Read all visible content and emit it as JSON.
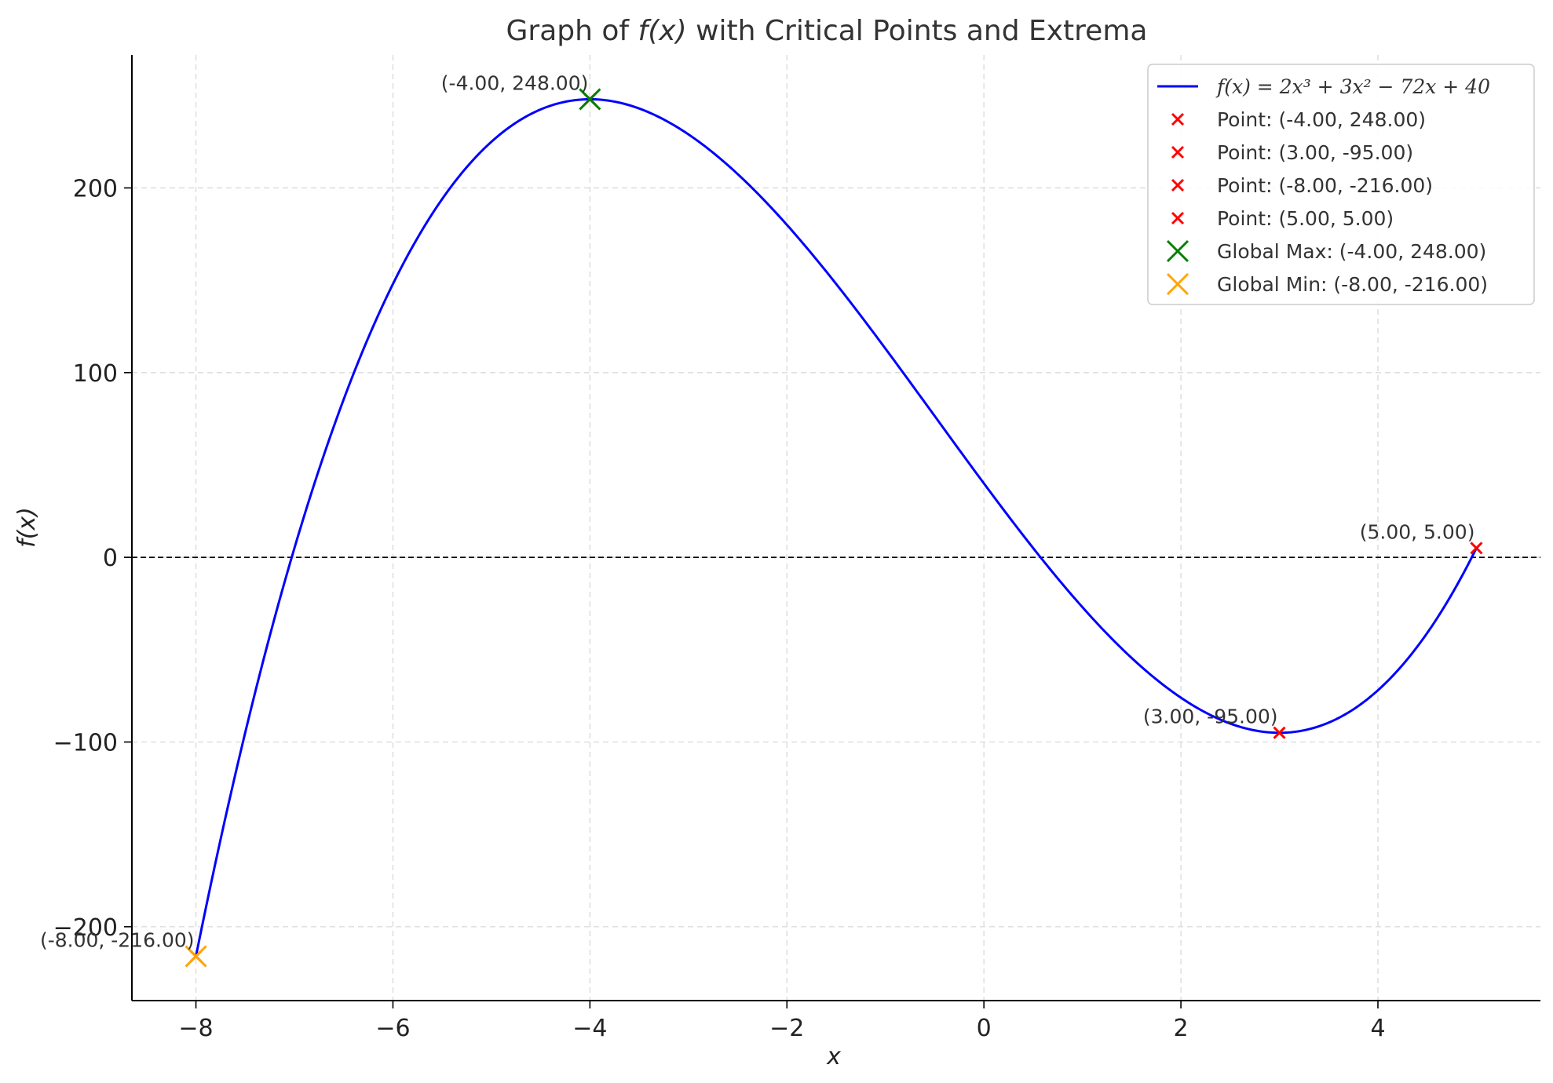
{
  "chart_data": {
    "type": "line",
    "title_prefix": "Graph of ",
    "title_math": "f(x)",
    "title_suffix": " with Critical Points and Extrema",
    "xlabel": "x",
    "ylabel": "f(x)",
    "xlim": [
      -8.65,
      5.65
    ],
    "ylim": [
      -240,
      272
    ],
    "xticks": [
      -8,
      -6,
      -4,
      -2,
      0,
      2,
      4
    ],
    "xtick_labels": [
      "−8",
      "−6",
      "−4",
      "−2",
      "0",
      "2",
      "4"
    ],
    "yticks": [
      -200,
      -100,
      0,
      100,
      200
    ],
    "ytick_labels": [
      "−200",
      "−100",
      "0",
      "100",
      "200"
    ],
    "grid": true,
    "legend_position": "top-right",
    "curve": {
      "name": "f(x) = 2x³ + 3x² − 72x + 40",
      "coefficients": {
        "a3": 2,
        "a2": 3,
        "a1": -72,
        "a0": 40
      },
      "x_range": [
        -8,
        5
      ],
      "color": "#0000ff"
    },
    "points": [
      {
        "x": -4,
        "y": 248,
        "label": "(-4.00, 248.00)",
        "legend": "Point: (-4.00, 248.00)"
      },
      {
        "x": 3,
        "y": -95,
        "label": "(3.00, -95.00)",
        "legend": "Point: (3.00, -95.00)"
      },
      {
        "x": -8,
        "y": -216,
        "label": "(-8.00, -216.00)",
        "legend": "Point: (-8.00, -216.00)"
      },
      {
        "x": 5,
        "y": 5,
        "label": "(5.00, 5.00)",
        "legend": "Point: (5.00, 5.00)"
      }
    ],
    "point_color": "#ff0000",
    "global_max": {
      "x": -4,
      "y": 248,
      "legend": "Global Max: (-4.00, 248.00)",
      "color": "#008000"
    },
    "global_min": {
      "x": -8,
      "y": -216,
      "legend": "Global Min: (-8.00, -216.00)",
      "color": "#ffa500"
    },
    "reference_line": {
      "y": 0,
      "style": "dashed",
      "color": "#000000"
    }
  }
}
